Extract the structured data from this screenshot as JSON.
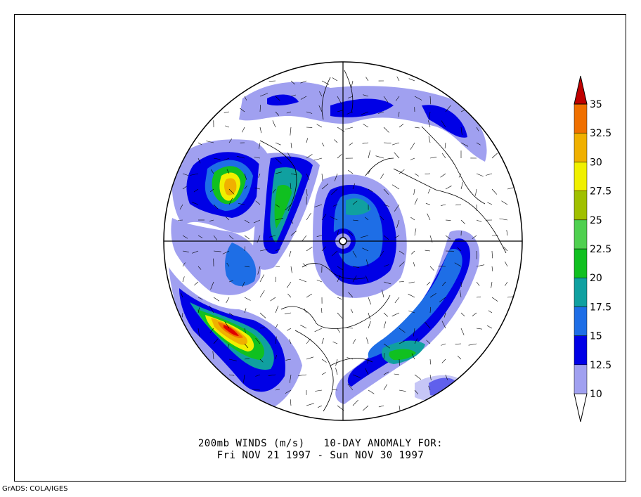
{
  "caption": {
    "line1": "200mb WINDS (m/s)   10-DAY ANOMALY FOR:",
    "line2": "Fri NOV 21 1997 - Sun NOV 30 1997"
  },
  "credit": "GrADS: COLA/IGES",
  "map": {
    "projection": "north polar stereographic",
    "variable": "200mb wind speed anomaly",
    "units": "m/s",
    "graticule": "meridian and parallel cross-hair through pole"
  },
  "colorbar": {
    "orientation": "vertical",
    "levels": [
      "10",
      "12.5",
      "15",
      "17.5",
      "20",
      "22.5",
      "25",
      "27.5",
      "30",
      "32.5",
      "35"
    ],
    "colors": [
      "#a0a0f0",
      "#0000e6",
      "#1e6ee6",
      "#10a0a0",
      "#10c020",
      "#50d050",
      "#a0c000",
      "#f0f000",
      "#f0b000",
      "#f07000",
      "#e00000"
    ],
    "below_color": "#ffffff",
    "above_color": "#c00000"
  }
}
